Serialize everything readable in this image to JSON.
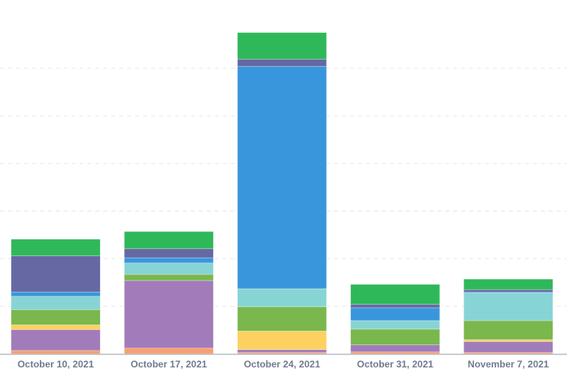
{
  "chart_data": {
    "type": "bar",
    "stacked": true,
    "title": "",
    "xlabel": "",
    "ylabel": "",
    "ylim": [
      0,
      700
    ],
    "grid": true,
    "y_tick_labels_shown": false,
    "categories": [
      "October 10, 2021",
      "October 17, 2021",
      "October 24, 2021",
      "October 31, 2021",
      "November 7, 2021"
    ],
    "series": [
      {
        "color": "#F8A06E",
        "values": [
          7,
          12,
          3,
          4,
          3
        ]
      },
      {
        "color": "#A27CBA",
        "values": [
          44,
          142,
          6,
          15,
          23
        ]
      },
      {
        "color": "#FDD160",
        "values": [
          10,
          0,
          39,
          0,
          4
        ]
      },
      {
        "color": "#7AB74D",
        "values": [
          32,
          13,
          51,
          33,
          40
        ]
      },
      {
        "color": "#87D4D5",
        "values": [
          28,
          24,
          38,
          18,
          58
        ]
      },
      {
        "color": "#3A96DC",
        "values": [
          9,
          11,
          467,
          27,
          2
        ]
      },
      {
        "color": "#6568A3",
        "values": [
          76,
          19,
          15,
          7,
          5
        ]
      },
      {
        "color": "#2FB85A",
        "values": [
          35,
          36,
          56,
          42,
          22
        ]
      }
    ]
  }
}
